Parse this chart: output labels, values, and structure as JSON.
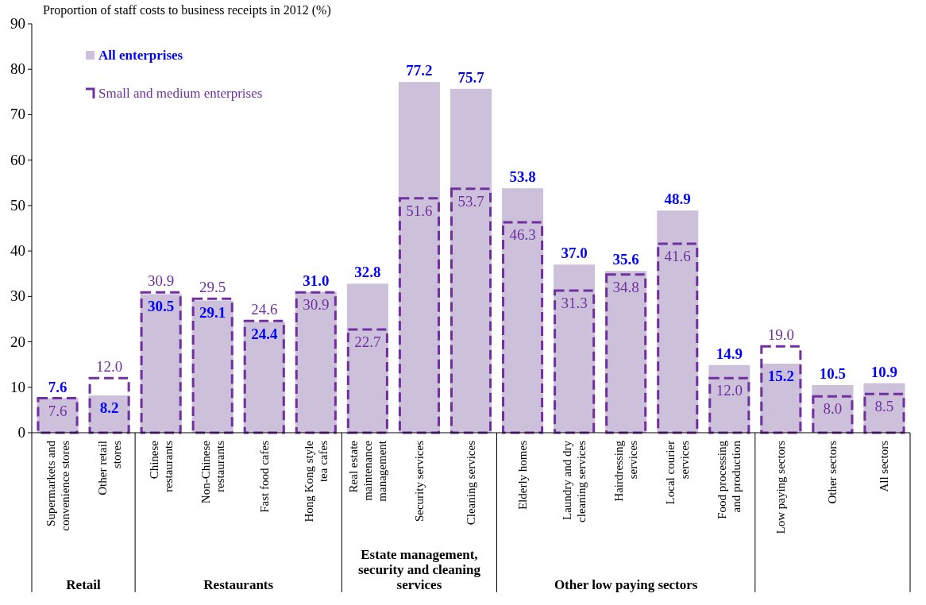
{
  "chart_data": {
    "type": "bar",
    "ylabel": "Proportion of staff costs to business receipts in 2012 (%)",
    "categories": [
      "Supermarkets and convenience stores",
      "Other retail stores",
      "Chinese restaurants",
      "Non-Chinese restaurants",
      "Fast food cafes",
      "Hong Kong style tea cafes",
      "Real estate maintenance management",
      "Security services",
      "Cleaning services",
      "Elderly homes",
      "Laundry and dry cleaning services",
      "Hairdressing services",
      "Local courier services",
      "Food processing and production",
      "Low paying sectors",
      "Other sectors",
      "All sectors"
    ],
    "series": [
      {
        "name": "All enterprises",
        "color": "#ccc0da",
        "values": [
          7.6,
          8.2,
          30.5,
          29.1,
          24.4,
          31.0,
          32.8,
          77.2,
          75.7,
          53.8,
          37.0,
          35.6,
          48.9,
          14.9,
          15.2,
          10.5,
          10.9
        ],
        "value_labels": [
          "7.6",
          "8.2",
          "30.5",
          "29.1",
          "24.4",
          "31.0",
          "32.8",
          "77.2",
          "75.7",
          "53.8",
          "37.0",
          "35.6",
          "48.9",
          "14.9",
          "15.2",
          "10.5",
          "10.9"
        ]
      },
      {
        "name": "Small and medium enterprises",
        "color": "#7030a0",
        "line_style": "dashed",
        "values": [
          7.6,
          12.0,
          30.9,
          29.5,
          24.6,
          30.9,
          22.7,
          51.6,
          53.7,
          46.3,
          31.3,
          34.8,
          41.6,
          12.0,
          19.0,
          8.0,
          8.5
        ],
        "value_labels": [
          "7.6",
          "12.0",
          "30.9",
          "29.5",
          "24.6",
          "30.9",
          "22.7",
          "51.6",
          "53.7",
          "46.3",
          "31.3",
          "34.8",
          "41.6",
          "12.0",
          "19.0",
          "8.0",
          "8.5"
        ]
      }
    ],
    "ylim": [
      0,
      90
    ],
    "yticks": [
      0,
      10,
      20,
      30,
      40,
      50,
      60,
      70,
      80,
      90
    ],
    "grid": false,
    "legend": "top left",
    "annotations": [
      "Retail",
      "Restaurants",
      "Estate management, security and cleaning services",
      "Other low paying sectors"
    ]
  }
}
